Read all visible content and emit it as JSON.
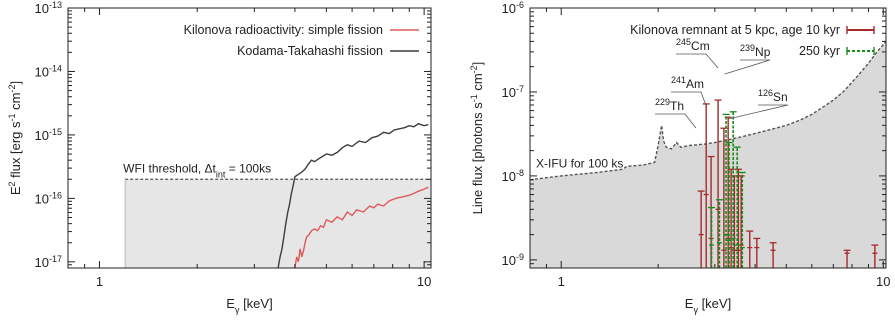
{
  "chart_data": [
    {
      "type": "line",
      "xlabel": "E_γ [keV]",
      "ylabel": "E² flux [erg s⁻¹ cm⁻²]",
      "xscale": "log",
      "yscale": "log",
      "xlim": [
        0.8,
        10.5
      ],
      "ylim": [
        8e-18,
        1e-13
      ],
      "x_ticks": [
        {
          "v": 1,
          "label": "1"
        },
        {
          "v": 10,
          "label": "10"
        }
      ],
      "y_ticks": [
        {
          "v": 1e-17,
          "base": "10",
          "exp": "-17"
        },
        {
          "v": 1e-16,
          "base": "10",
          "exp": "-16"
        },
        {
          "v": 1e-15,
          "base": "10",
          "exp": "-15"
        },
        {
          "v": 1e-14,
          "base": "10",
          "exp": "-14"
        },
        {
          "v": 1e-13,
          "base": "10",
          "exp": "-13"
        }
      ],
      "grid": false,
      "legend_position": "top-right",
      "threshold": {
        "label": "WFI threshold, Δt",
        "label_sub": "int",
        "label_rest": " = 100ks",
        "x": [
          1.2,
          10.5
        ],
        "y": 2e-16,
        "color": "#555555",
        "fill": "#e6e6e6"
      },
      "series": [
        {
          "name": "Kilonova radioactivity: simple fission",
          "color": "#e05a5a",
          "x": [
            4.0,
            4.05,
            4.1,
            4.15,
            4.2,
            4.25,
            4.3,
            4.35,
            4.4,
            4.5,
            4.6,
            4.7,
            4.8,
            4.9,
            5.0,
            5.2,
            5.4,
            5.6,
            5.8,
            6.0,
            6.2,
            6.5,
            6.8,
            7.0,
            7.2,
            7.5,
            7.8,
            8.0,
            8.3,
            8.6,
            9.0,
            9.3,
            9.6,
            10.0,
            10.3
          ],
          "y": [
            8e-18,
            1.2e-17,
            1e-17,
            1.6e-17,
            1.2e-17,
            1.5e-17,
            2e-17,
            2.5e-17,
            2.6e-17,
            3.1e-17,
            3.3e-17,
            3.1e-17,
            3.7e-17,
            3.5e-17,
            4.6e-17,
            4.2e-17,
            5.1e-17,
            4.6e-17,
            6.1e-17,
            5.4e-17,
            6.6e-17,
            6.1e-17,
            7.6e-17,
            7.1e-17,
            8.1e-17,
            7.6e-17,
            9.1e-17,
            9.6e-17,
            1.02e-16,
            1.06e-16,
            1.12e-16,
            1.2e-16,
            1.3e-16,
            1.4e-16,
            1.5e-16
          ]
        },
        {
          "name": "Kodama-Takahashi fission",
          "color": "#3d3d3d",
          "x": [
            3.55,
            3.6,
            3.65,
            3.7,
            3.75,
            3.8,
            3.85,
            3.9,
            3.95,
            4.0,
            4.1,
            4.2,
            4.3,
            4.4,
            4.5,
            4.6,
            4.8,
            5.0,
            5.2,
            5.4,
            5.6,
            5.8,
            6.0,
            6.3,
            6.6,
            6.9,
            7.2,
            7.5,
            7.8,
            8.1,
            8.4,
            8.7,
            9.0,
            9.3,
            9.6,
            10.0,
            10.3
          ],
          "y": [
            8e-18,
            1.2e-17,
            1.6e-17,
            2.5e-17,
            4e-17,
            6e-17,
            8e-17,
            1.2e-16,
            1.6e-16,
            2.2e-16,
            2.4e-16,
            2.6e-16,
            2.9e-16,
            3.5e-16,
            4e-16,
            3.8e-16,
            4.4e-16,
            5e-16,
            4.8e-16,
            5.3e-16,
            6.3e-16,
            7e-16,
            6.6e-16,
            8e-16,
            7.6e-16,
            9e-16,
            9.6e-16,
            1.1e-15,
            1.05e-15,
            1.2e-15,
            1.25e-15,
            1.3e-15,
            1.4e-15,
            1.35e-15,
            1.5e-15,
            1.4e-15,
            1.45e-15
          ]
        }
      ]
    },
    {
      "type": "line",
      "xlabel": "E_γ [keV]",
      "ylabel": "Line flux [photons s⁻¹ cm⁻²]",
      "xscale": "log",
      "yscale": "log",
      "xlim": [
        0.8,
        10.2
      ],
      "ylim": [
        8e-10,
        1e-06
      ],
      "x_ticks": [
        {
          "v": 1,
          "label": "1"
        },
        {
          "v": 10,
          "label": "10"
        }
      ],
      "y_ticks": [
        {
          "v": 1e-09,
          "base": "10",
          "exp": "-9"
        },
        {
          "v": 1e-08,
          "base": "10",
          "exp": "-8"
        },
        {
          "v": 1e-07,
          "base": "10",
          "exp": "-7"
        },
        {
          "v": 1e-06,
          "base": "10",
          "exp": "-6"
        }
      ],
      "grid": false,
      "legend_position": "top-right",
      "threshold": {
        "label": "X-IFU for 100 ks",
        "color": "#555555",
        "fill": "#d9d9d9",
        "x": [
          0.8,
          1.0,
          1.3,
          1.55,
          1.6,
          1.8,
          1.95,
          2.0,
          2.05,
          2.08,
          2.12,
          2.2,
          2.28,
          2.35,
          2.5,
          2.8,
          3.0,
          3.3,
          3.6,
          4.0,
          4.5,
          5.0,
          5.5,
          6.0,
          6.5,
          7.0,
          7.5,
          8.0,
          8.5,
          9.0,
          9.5,
          10.2
        ],
        "y": [
          9e-09,
          1e-08,
          1.1e-08,
          1.2e-08,
          1.3e-08,
          1.35e-08,
          1.45e-08,
          2.3e-08,
          4e-08,
          2.6e-08,
          2.2e-08,
          2.1e-08,
          2.5e-08,
          2.2e-08,
          2.3e-08,
          2.4e-08,
          2.5e-08,
          2.7e-08,
          2.9e-08,
          3.2e-08,
          3.6e-08,
          4e-08,
          4.6e-08,
          5.4e-08,
          6.6e-08,
          8e-08,
          1e-07,
          1.3e-07,
          1.7e-07,
          2.2e-07,
          2.9e-07,
          4e-07
        ]
      },
      "series": [
        {
          "name": "Kilonova remnant at 5 kpc, age 10 kyr",
          "color": "#a52a2a",
          "style": "errorbar",
          "lines": [
            {
              "x": 2.72,
              "y": 6.6e-09,
              "yerr_low": 2e-09
            },
            {
              "x": 2.82,
              "y": 7.2e-08,
              "yerr_low": 6e-09
            },
            {
              "x": 2.92,
              "y": 1.7e-08,
              "yerr_low": 1.8e-09
            },
            {
              "x": 3.07,
              "y": 8e-08,
              "yerr_low": 4e-09
            },
            {
              "x": 3.2,
              "y": 3.7e-08,
              "yerr_low": 1.3e-09
            },
            {
              "x": 3.3,
              "y": 5e-08,
              "yerr_low": 1.8e-09
            },
            {
              "x": 3.37,
              "y": 1.2e-08,
              "yerr_low": 1.4e-09
            },
            {
              "x": 3.45,
              "y": 1e-08,
              "yerr_low": 1.3e-09
            },
            {
              "x": 3.55,
              "y": 1.2e-08,
              "yerr_low": 1.3e-09
            },
            {
              "x": 3.62,
              "y": 1e-08,
              "yerr_low": 1.5e-09
            },
            {
              "x": 3.85,
              "y": 2.2e-09,
              "yerr_low": 1.4e-09
            },
            {
              "x": 4.05,
              "y": 1.8e-09,
              "yerr_low": 1.4e-09
            },
            {
              "x": 4.55,
              "y": 1.6e-09,
              "yerr_low": 1.3e-09
            },
            {
              "x": 7.72,
              "y": 1.3e-09,
              "yerr_low": 1.2e-09
            },
            {
              "x": 9.42,
              "y": 1.5e-09,
              "yerr_low": 1.2e-09
            }
          ]
        },
        {
          "name": "250 kyr",
          "color": "#1a8a1a",
          "style": "errorbar-dashed",
          "lines": [
            {
              "x": 2.93,
              "y": 4.2e-09,
              "yerr_low": 1.5e-09
            },
            {
              "x": 3.1,
              "y": 5.2e-09,
              "yerr_low": 1.6e-09
            },
            {
              "x": 3.25,
              "y": 5.4e-08,
              "yerr_low": 2e-09
            },
            {
              "x": 3.32,
              "y": 2.5e-08,
              "yerr_low": 1.7e-09
            },
            {
              "x": 3.42,
              "y": 5.8e-08,
              "yerr_low": 1.8e-09
            },
            {
              "x": 3.52,
              "y": 2.2e-08,
              "yerr_low": 1.5e-09
            },
            {
              "x": 3.65,
              "y": 1.1e-08,
              "yerr_low": 1.4e-09
            }
          ]
        }
      ],
      "annotations": [
        {
          "base": "245",
          "name": "Cm",
          "x": 3.07
        },
        {
          "base": "239",
          "name": "Np",
          "x": 3.22
        },
        {
          "base": "241",
          "name": "Am",
          "x": 2.82
        },
        {
          "base": "126",
          "name": "Sn",
          "x": 3.3
        },
        {
          "base": "229",
          "name": "Th",
          "x": 2.62
        }
      ]
    }
  ]
}
